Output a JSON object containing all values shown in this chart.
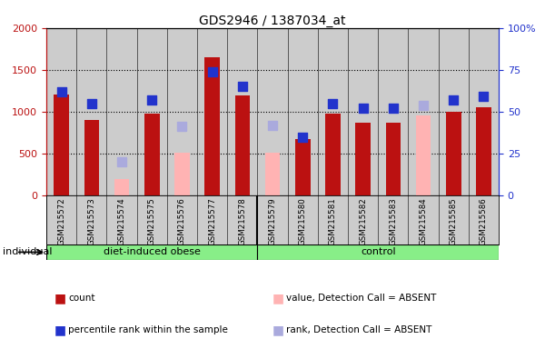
{
  "title": "GDS2946 / 1387034_at",
  "samples": [
    "GSM215572",
    "GSM215573",
    "GSM215574",
    "GSM215575",
    "GSM215576",
    "GSM215577",
    "GSM215578",
    "GSM215579",
    "GSM215580",
    "GSM215581",
    "GSM215582",
    "GSM215583",
    "GSM215584",
    "GSM215585",
    "GSM215586"
  ],
  "count_values": [
    1200,
    900,
    null,
    980,
    null,
    1650,
    1190,
    null,
    670,
    980,
    870,
    870,
    null,
    1000,
    1050
  ],
  "count_absent": [
    null,
    null,
    200,
    null,
    510,
    null,
    null,
    510,
    null,
    null,
    null,
    null,
    960,
    null,
    null
  ],
  "percentile_rank": [
    62,
    55,
    null,
    57,
    null,
    74,
    65,
    null,
    35,
    55,
    52,
    52,
    null,
    57,
    59
  ],
  "rank_absent": [
    null,
    null,
    20,
    null,
    41,
    null,
    null,
    42,
    null,
    null,
    null,
    null,
    54,
    null,
    null
  ],
  "diet_count": 7,
  "control_count": 8,
  "ylim_left": [
    0,
    2000
  ],
  "ylim_right": [
    0,
    100
  ],
  "yticks_left": [
    0,
    500,
    1000,
    1500,
    2000
  ],
  "yticks_right": [
    0,
    25,
    50,
    75,
    100
  ],
  "ytick_labels_left": [
    "0",
    "500",
    "1000",
    "1500",
    "2000"
  ],
  "ytick_labels_right": [
    "0",
    "25",
    "50",
    "75",
    "100%"
  ],
  "bar_color": "#BB1111",
  "bar_absent_color": "#FFB3B3",
  "dot_color": "#2233CC",
  "dot_absent_color": "#AAAADD",
  "group_color": "#88EE88",
  "bg_color": "#CCCCCC",
  "bar_width": 0.5,
  "dot_size": 55,
  "legend_items": [
    {
      "label": "count",
      "color": "#BB1111",
      "type": "bar"
    },
    {
      "label": "percentile rank within the sample",
      "color": "#2233CC",
      "type": "dot"
    },
    {
      "label": "value, Detection Call = ABSENT",
      "color": "#FFB3B3",
      "type": "bar"
    },
    {
      "label": "rank, Detection Call = ABSENT",
      "color": "#AAAADD",
      "type": "dot"
    }
  ]
}
